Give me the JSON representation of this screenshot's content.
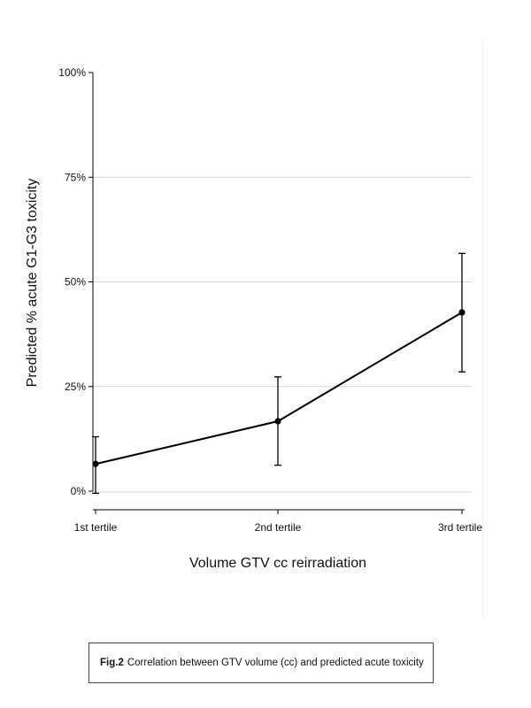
{
  "chart_data": {
    "type": "line",
    "title": "",
    "xlabel": "Volume GTV cc reirradiation",
    "ylabel": "Predicted % acute G1-G3 toxicity",
    "categories": [
      "1st tertile",
      "2nd tertile",
      "3rd tertile"
    ],
    "series": [
      {
        "values": [
          6.5,
          16.7,
          42.7
        ],
        "ci_lower": [
          -0.5,
          6.2,
          28.5
        ],
        "ci_upper": [
          13.0,
          27.3,
          56.8
        ]
      }
    ],
    "ylim": [
      0,
      100
    ],
    "yticks": [
      0,
      25,
      50,
      75,
      100
    ],
    "ytick_labels": [
      "0%",
      "25%",
      "50%",
      "75%",
      "100%"
    ],
    "grid": true,
    "legend": "none",
    "colors": {
      "line": "#000000",
      "grid": "#d4d4d4",
      "axis": "#000000"
    }
  },
  "caption": {
    "label": "Fig.2",
    "text": "Correlation between GTV volume (cc) and predicted acute toxicity"
  }
}
